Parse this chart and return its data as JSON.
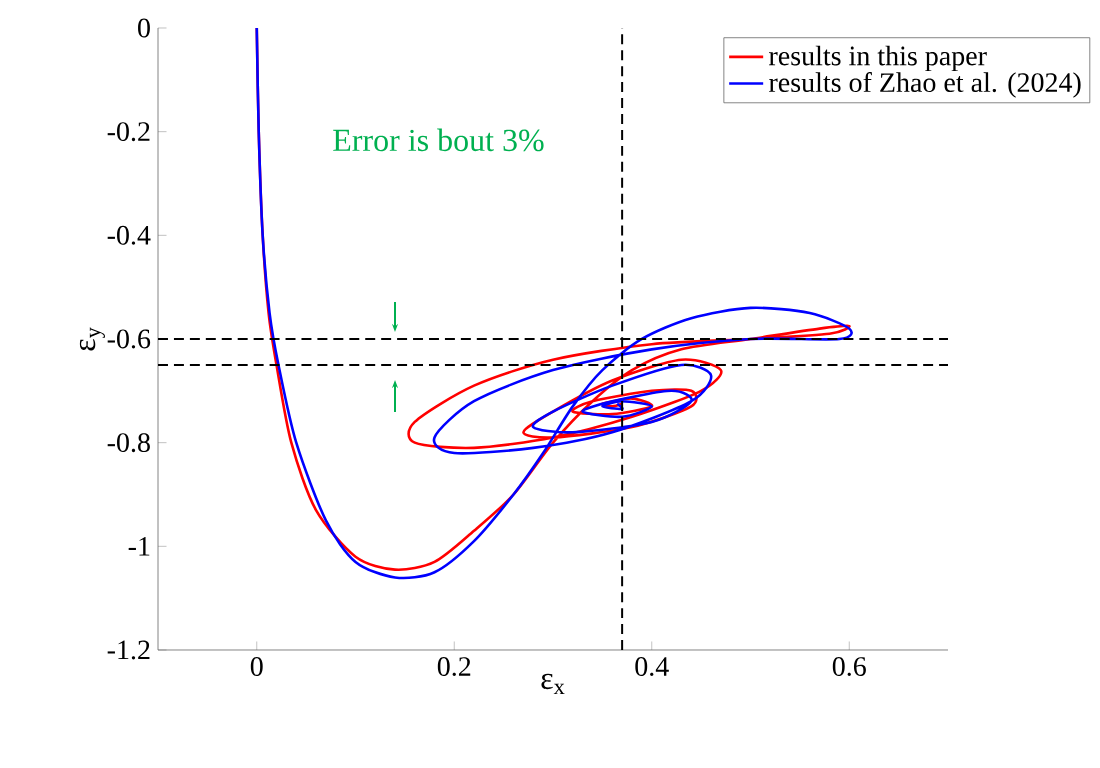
{
  "chart_data": {
    "type": "line",
    "xlabel": "ε$_{x}$",
    "ylabel": "ε$_{y}$",
    "xlim": [
      -0.1,
      0.7
    ],
    "ylim": [
      -1.2,
      0
    ],
    "xticks": [
      0,
      0.2,
      0.4,
      0.6
    ],
    "yticks": [
      -1.2,
      -1,
      -0.8,
      -0.6,
      -0.4,
      -0.2,
      0
    ],
    "grid": false,
    "legend": "top right",
    "line_style": "solid",
    "marker": "none",
    "series": [
      {
        "name": "results in this paper",
        "color": "#ff0000",
        "x": [
          0,
          0.002,
          0.006,
          0.012,
          0.02,
          0.035,
          0.06,
          0.1,
          0.14,
          0.18,
          0.22,
          0.26,
          0.3,
          0.34,
          0.38,
          0.43,
          0.5,
          0.57,
          0.6,
          0.58,
          0.5,
          0.4,
          0.3,
          0.22,
          0.16,
          0.16,
          0.22,
          0.3,
          0.38,
          0.45,
          0.47,
          0.43,
          0.36,
          0.3,
          0.27,
          0.3,
          0.38,
          0.44,
          0.44,
          0.4,
          0.34,
          0.32,
          0.36,
          0.4,
          0.38,
          0.35,
          0.36,
          0.37
        ],
        "values": [
          0,
          -0.2,
          -0.4,
          -0.55,
          -0.65,
          -0.8,
          -0.93,
          -1.02,
          -1.045,
          -1.03,
          -0.97,
          -0.9,
          -0.8,
          -0.72,
          -0.66,
          -0.62,
          -0.6,
          -0.58,
          -0.575,
          -0.59,
          -0.6,
          -0.61,
          -0.64,
          -0.69,
          -0.76,
          -0.8,
          -0.81,
          -0.79,
          -0.75,
          -0.7,
          -0.66,
          -0.64,
          -0.68,
          -0.74,
          -0.78,
          -0.79,
          -0.77,
          -0.73,
          -0.7,
          -0.7,
          -0.72,
          -0.74,
          -0.745,
          -0.73,
          -0.715,
          -0.725,
          -0.73,
          -0.725
        ]
      },
      {
        "name": "results of Zhao et al. (2024)",
        "color": "#0000ff",
        "x": [
          0,
          0.002,
          0.006,
          0.013,
          0.022,
          0.04,
          0.07,
          0.1,
          0.14,
          0.18,
          0.22,
          0.26,
          0.29,
          0.32,
          0.35,
          0.39,
          0.44,
          0.5,
          0.56,
          0.6,
          0.59,
          0.5,
          0.4,
          0.3,
          0.22,
          0.18,
          0.2,
          0.28,
          0.36,
          0.44,
          0.46,
          0.43,
          0.36,
          0.3,
          0.28,
          0.32,
          0.4,
          0.44,
          0.42,
          0.36,
          0.33,
          0.37,
          0.4,
          0.37,
          0.35,
          0.37,
          0.365
        ],
        "values": [
          0,
          -0.2,
          -0.4,
          -0.55,
          -0.65,
          -0.8,
          -0.95,
          -1.03,
          -1.06,
          -1.05,
          -0.99,
          -0.9,
          -0.82,
          -0.73,
          -0.66,
          -0.6,
          -0.56,
          -0.54,
          -0.55,
          -0.58,
          -0.6,
          -0.6,
          -0.62,
          -0.66,
          -0.72,
          -0.79,
          -0.82,
          -0.81,
          -0.78,
          -0.72,
          -0.67,
          -0.65,
          -0.69,
          -0.74,
          -0.77,
          -0.78,
          -0.76,
          -0.72,
          -0.7,
          -0.72,
          -0.74,
          -0.75,
          -0.73,
          -0.72,
          -0.73,
          -0.735,
          -0.725
        ]
      }
    ],
    "ref_lines": [
      {
        "axis": "x",
        "value": 0.37,
        "color": "#000000",
        "line_style": "dashed"
      },
      {
        "axis": "y",
        "value": -0.6,
        "color": "#000000",
        "line_style": "dashed"
      },
      {
        "axis": "y",
        "value": -0.65,
        "color": "#000000",
        "line_style": "dashed"
      }
    ],
    "annotations": [
      "Error is bout 3%"
    ]
  }
}
